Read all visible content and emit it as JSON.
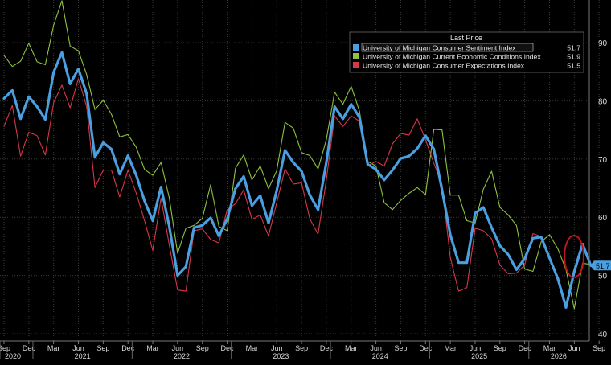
{
  "chart_data": {
    "type": "line",
    "ylim": [
      40,
      97
    ],
    "grid": true,
    "legend_placement": "top-center",
    "legend_header": "Last Price",
    "y_ticks": [
      40,
      50,
      60,
      70,
      80,
      90
    ],
    "x_start": "2020-09",
    "x_month_labels": [
      "Sep",
      "Dec",
      "Mar",
      "Jun",
      "Sep",
      "Dec",
      "Mar",
      "Jun",
      "Sep",
      "Dec",
      "Mar",
      "Jun",
      "Sep",
      "Dec",
      "Mar",
      "Jun",
      "Sep",
      "Dec",
      "Mar",
      "Jun",
      "Sep",
      "Dec",
      "Mar",
      "Jun",
      "Sep"
    ],
    "x_year_labels": [
      "2020",
      "2021",
      "2022",
      "2023",
      "2024",
      "2025",
      "2026"
    ],
    "last_value_tag": "51.7",
    "series": [
      {
        "name": "University of Michigan Consumer Sentiment Index",
        "last": "51.7",
        "color": "#4a9fe0",
        "values": [
          80.4,
          81.8,
          76.9,
          80.7,
          79.0,
          76.8,
          84.9,
          88.3,
          82.9,
          85.5,
          81.2,
          70.3,
          72.8,
          71.7,
          67.4,
          70.6,
          67.2,
          62.8,
          59.4,
          65.2,
          58.4,
          50.0,
          51.5,
          58.2,
          58.6,
          59.9,
          56.8,
          59.7,
          64.9,
          67.0,
          62.0,
          63.7,
          59.0,
          64.6,
          71.5,
          69.4,
          67.9,
          63.8,
          61.3,
          69.4,
          79.0,
          76.9,
          79.4,
          77.2,
          69.1,
          68.2,
          66.4,
          68.1,
          70.1,
          70.5,
          71.8,
          74.0,
          71.7,
          64.7,
          57.0,
          52.2,
          52.2,
          60.7,
          61.7,
          58.2,
          55.1,
          53.6,
          51.0,
          52.9,
          56.4,
          56.6,
          53.0,
          49.5,
          44.5,
          50.7,
          55.4,
          51.7
        ]
      },
      {
        "name": "University of Michigan Current Economic Conditions Index",
        "last": "51.9",
        "color": "#8fc23f",
        "values": [
          87.8,
          85.9,
          86.8,
          89.9,
          86.7,
          86.2,
          93.0,
          97.2,
          89.4,
          88.6,
          84.5,
          78.5,
          80.1,
          77.7,
          73.8,
          74.2,
          72.0,
          68.2,
          67.2,
          69.4,
          63.3,
          53.8,
          58.1,
          58.6,
          59.8,
          65.6,
          58.4,
          57.7,
          68.4,
          70.7,
          66.4,
          68.8,
          64.9,
          68.0,
          76.3,
          75.3,
          71.1,
          70.6,
          68.3,
          73.3,
          81.5,
          79.4,
          82.5,
          78.3,
          69.6,
          68.8,
          62.5,
          61.3,
          62.9,
          64.1,
          65.1,
          63.9,
          75.1,
          75.0,
          63.8,
          63.8,
          59.4,
          59.0,
          64.8,
          67.9,
          61.7,
          60.4,
          58.6,
          51.1,
          50.7,
          55.8,
          57.0,
          54.6,
          51.0,
          44.3,
          52.1,
          51.9
        ]
      },
      {
        "name": "University of Michigan Consumer Expectations Index",
        "last": "51.5",
        "color": "#d9364a",
        "values": [
          75.6,
          79.2,
          70.5,
          74.6,
          74.0,
          70.7,
          79.7,
          82.7,
          78.8,
          83.8,
          79.0,
          65.1,
          68.1,
          68.1,
          63.5,
          68.1,
          64.1,
          59.4,
          54.3,
          63.3,
          55.2,
          47.5,
          47.3,
          57.7,
          58.0,
          56.2,
          55.6,
          61.3,
          62.3,
          64.7,
          59.6,
          60.4,
          56.8,
          62.5,
          68.3,
          65.7,
          65.9,
          59.7,
          57.1,
          66.4,
          77.4,
          75.6,
          77.4,
          76.5,
          68.8,
          69.6,
          68.8,
          72.6,
          74.4,
          74.1,
          76.9,
          73.3,
          69.3,
          65.6,
          53.1,
          47.3,
          47.9,
          58.1,
          57.7,
          56.3,
          51.8,
          50.3,
          50.4,
          51.8,
          57.2,
          56.7,
          53.1,
          49.0,
          44.6,
          50.1,
          55.0,
          51.5
        ]
      }
    ]
  }
}
